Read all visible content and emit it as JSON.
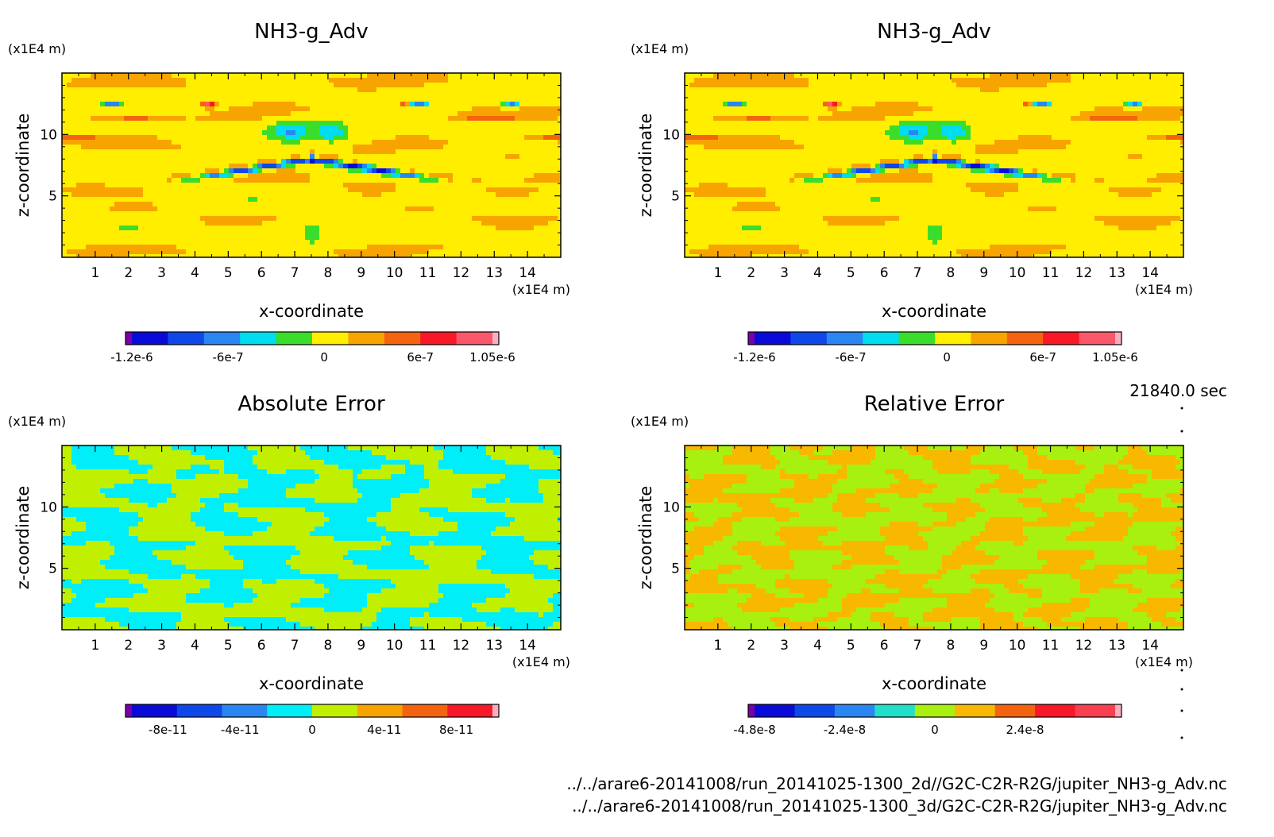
{
  "time_label": "21840.0 sec",
  "files": [
    "../../arare6-20141008/run_20141025-1300_2d//G2C-C2R-R2G/jupiter_NH3-g_Adv.nc",
    "../../arare6-20141008/run_20141025-1300_3d/G2C-C2R-R2G/jupiter_NH3-g_Adv.nc"
  ],
  "chart_data": [
    {
      "type": "heatmap",
      "title": "NH3-g_Adv",
      "xlabel": "x-coordinate",
      "ylabel": "z-coordinate",
      "x_unit": "(x1E4 m)",
      "y_unit": "(x1E4 m)",
      "xlim": [
        0,
        15
      ],
      "ylim": [
        0,
        15
      ],
      "x_ticks": [
        1,
        2,
        3,
        4,
        5,
        6,
        7,
        8,
        9,
        10,
        11,
        12,
        13,
        14
      ],
      "y_ticks": [
        5,
        10
      ],
      "field": "ammonia",
      "colorbar": {
        "min": -1.2e-06,
        "max": 1.05e-06,
        "nbins": 11,
        "colors": [
          "#7a00a8",
          "#0a0ad8",
          "#0f48e8",
          "#2a86f0",
          "#00dcf0",
          "#3ade2a",
          "#ffee00",
          "#f8a400",
          "#f46410",
          "#f81828",
          "#f8586a",
          "#f8b0c0"
        ],
        "tick_values": [
          -1.2e-06,
          -6e-07,
          0,
          6e-07,
          1.05e-06
        ],
        "tick_labels": [
          "-1.2e-6",
          "-6e-7",
          "0",
          "6e-7",
          "1.05e-6"
        ]
      }
    },
    {
      "type": "heatmap",
      "title": "NH3-g_Adv",
      "xlabel": "x-coordinate",
      "ylabel": "z-coordinate",
      "x_unit": "(x1E4 m)",
      "y_unit": "(x1E4 m)",
      "xlim": [
        0,
        15
      ],
      "ylim": [
        0,
        15
      ],
      "x_ticks": [
        1,
        2,
        3,
        4,
        5,
        6,
        7,
        8,
        9,
        10,
        11,
        12,
        13,
        14
      ],
      "y_ticks": [
        5,
        10
      ],
      "field": "ammonia",
      "colorbar": {
        "min": -1.2e-06,
        "max": 1.05e-06,
        "nbins": 11,
        "colors": [
          "#7a00a8",
          "#0a0ad8",
          "#0f48e8",
          "#2a86f0",
          "#00dcf0",
          "#3ade2a",
          "#ffee00",
          "#f8a400",
          "#f46410",
          "#f81828",
          "#f8586a",
          "#f8b0c0"
        ],
        "tick_values": [
          -1.2e-06,
          -6e-07,
          0,
          6e-07,
          1.05e-06
        ],
        "tick_labels": [
          "-1.2e-6",
          "-6e-7",
          "0",
          "6e-7",
          "1.05e-6"
        ]
      }
    },
    {
      "type": "heatmap",
      "title": "Absolute Error",
      "xlabel": "x-coordinate",
      "ylabel": "z-coordinate",
      "x_unit": "(x1E4 m)",
      "y_unit": "(x1E4 m)",
      "xlim": [
        0,
        15
      ],
      "ylim": [
        0,
        15
      ],
      "x_ticks": [
        1,
        2,
        3,
        4,
        5,
        6,
        7,
        8,
        9,
        10,
        11,
        12,
        13,
        14
      ],
      "y_ticks": [
        5,
        10
      ],
      "field": "abs_error",
      "colorbar": {
        "min": -1e-10,
        "max": 1e-10,
        "nbins": 10,
        "colors": [
          "#7a00a8",
          "#0a0ad8",
          "#0f48e8",
          "#2a86f0",
          "#00eef8",
          "#c0f000",
          "#f8a400",
          "#f46410",
          "#f81828",
          "#f8b0c0"
        ],
        "tick_values": [
          -8e-11,
          -4e-11,
          0,
          4e-11,
          8e-11
        ],
        "tick_labels": [
          "-8e-11",
          "-4e-11",
          "0",
          "4e-11",
          "8e-11"
        ]
      }
    },
    {
      "type": "heatmap",
      "title": "Relative Error",
      "xlabel": "x-coordinate",
      "ylabel": "z-coordinate",
      "x_unit": "(x1E4 m)",
      "y_unit": "(x1E4 m)",
      "xlim": [
        0,
        15
      ],
      "ylim": [
        0,
        15
      ],
      "x_ticks": [
        1,
        2,
        3,
        4,
        5,
        6,
        7,
        8,
        9,
        10,
        11,
        12,
        13,
        14
      ],
      "y_ticks": [
        5,
        10
      ],
      "field": "rel_error",
      "colorbar": {
        "min": -4.8e-08,
        "max": 4.8e-08,
        "nbins": 10,
        "colors": [
          "#7a00a8",
          "#0a0ad8",
          "#0f48e8",
          "#2a86f0",
          "#20e0c8",
          "#a8f010",
          "#f8b800",
          "#f46410",
          "#f81828",
          "#f84050",
          "#f8b0c0"
        ],
        "tick_values": [
          -4.8e-08,
          -2.4e-08,
          0,
          2.4e-08
        ],
        "tick_labels": [
          "-4.8e-8",
          "-2.4e-8",
          "0",
          "2.4e-8"
        ]
      }
    }
  ]
}
